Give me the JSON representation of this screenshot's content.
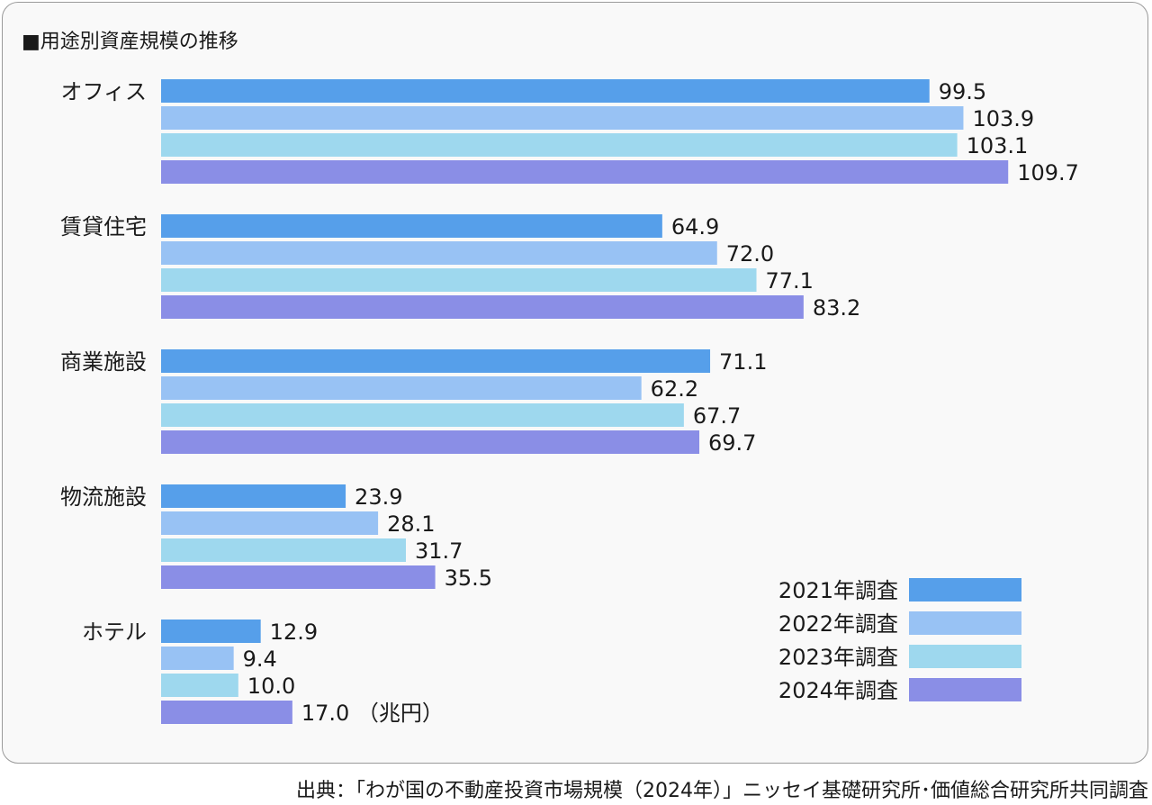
{
  "chart_data": {
    "type": "bar",
    "orientation": "horizontal",
    "title": "■用途別資産規模の推移",
    "categories": [
      "オフィス",
      "賃貸住宅",
      "商業施設",
      "物流施設",
      "ホテル"
    ],
    "series": [
      {
        "name": "2021年調査",
        "color": "#569fea",
        "values": [
          99.5,
          64.9,
          71.1,
          23.9,
          12.9
        ]
      },
      {
        "name": "2022年調査",
        "color": "#98c2f4",
        "values": [
          103.9,
          72.0,
          62.2,
          28.1,
          9.4
        ]
      },
      {
        "name": "2023年調査",
        "color": "#9ed8ee",
        "values": [
          103.1,
          77.1,
          67.7,
          31.7,
          10.0
        ]
      },
      {
        "name": "2024年調査",
        "color": "#8a8ee6",
        "values": [
          109.7,
          83.2,
          69.7,
          35.5,
          17.0
        ]
      }
    ],
    "value_labels": [
      [
        "99.5",
        "103.9",
        "103.1",
        "109.7"
      ],
      [
        "64.9",
        "72.0",
        "77.1",
        "83.2"
      ],
      [
        "71.1",
        "62.2",
        "67.7",
        "69.7"
      ],
      [
        "23.9",
        "28.1",
        "31.7",
        "35.5"
      ],
      [
        "12.9",
        "9.4",
        "10.0",
        "17.0"
      ]
    ],
    "unit_label": "（兆円）",
    "legend_position": "bottom-right",
    "grid": false
  },
  "source": "出典：「わが国の不動産投資市場規模（2024年）」ニッセイ基礎研究所･価値総合研究所共同調査"
}
